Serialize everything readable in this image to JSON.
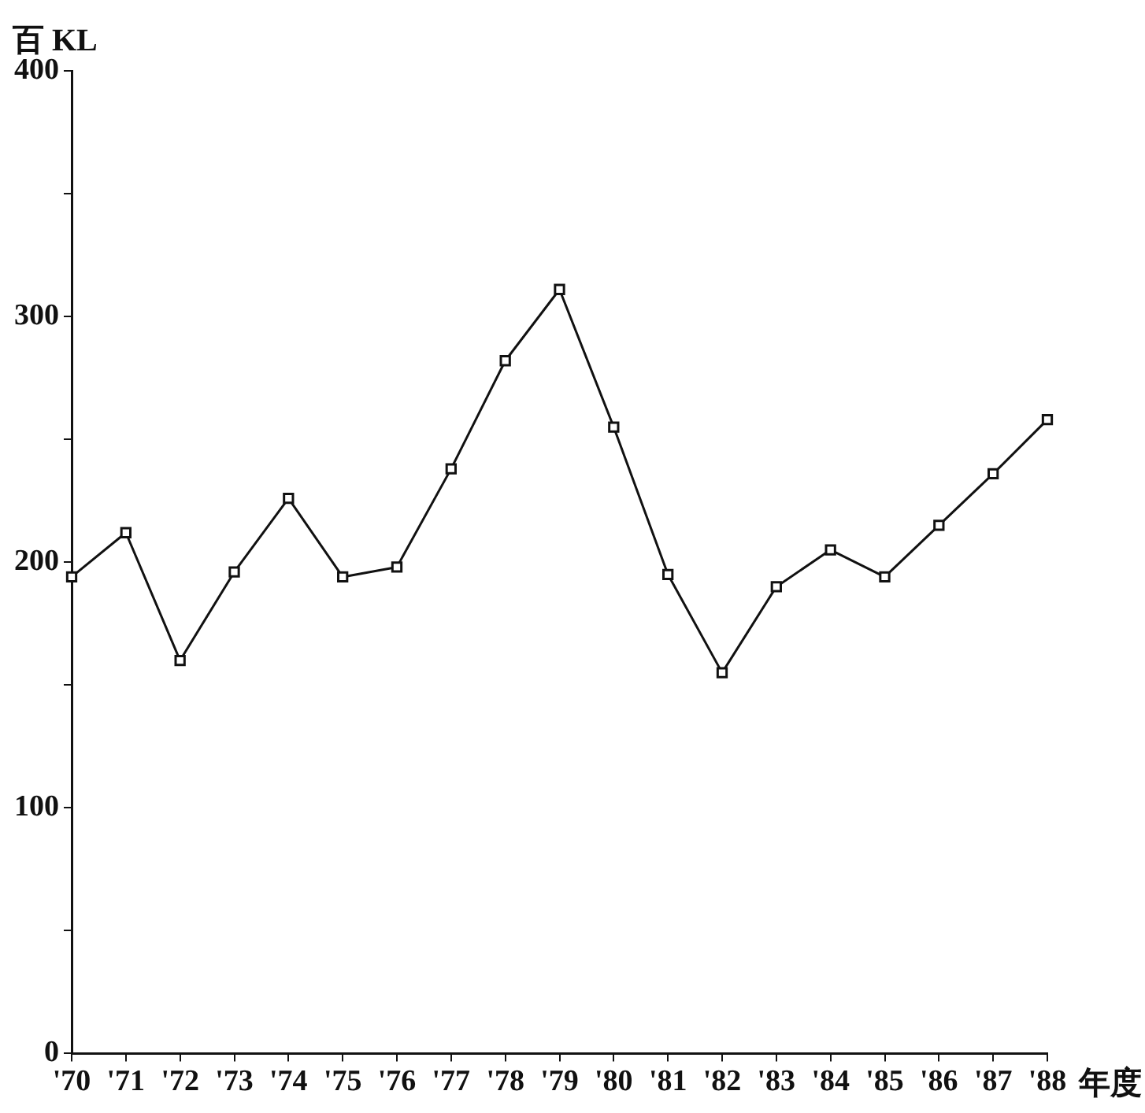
{
  "chart_data": {
    "type": "line",
    "xlabel": "年度",
    "ylabel": "百 KL",
    "categories": [
      "'70",
      "'71",
      "'72",
      "'73",
      "'74",
      "'75",
      "'76",
      "'77",
      "'78",
      "'79",
      "'80",
      "'81",
      "'82",
      "'83",
      "'84",
      "'85",
      "'86",
      "'87",
      "'88"
    ],
    "series": [
      {
        "color": "#111111",
        "values": [
          194,
          212,
          160,
          196,
          226,
          194,
          198,
          238,
          282,
          311,
          255,
          195,
          155,
          190,
          205,
          194,
          215,
          236,
          258
        ]
      }
    ],
    "ylim": [
      0,
      400
    ],
    "yticks": [
      0,
      {
        "value": 50,
        "label": null
      },
      100,
      {
        "value": 150,
        "label": null
      },
      200,
      {
        "value": 250,
        "label": null
      },
      300,
      {
        "value": 350,
        "label": null
      },
      400
    ],
    "grid": false,
    "legend": false,
    "marker": "square",
    "line_style": "solid"
  }
}
